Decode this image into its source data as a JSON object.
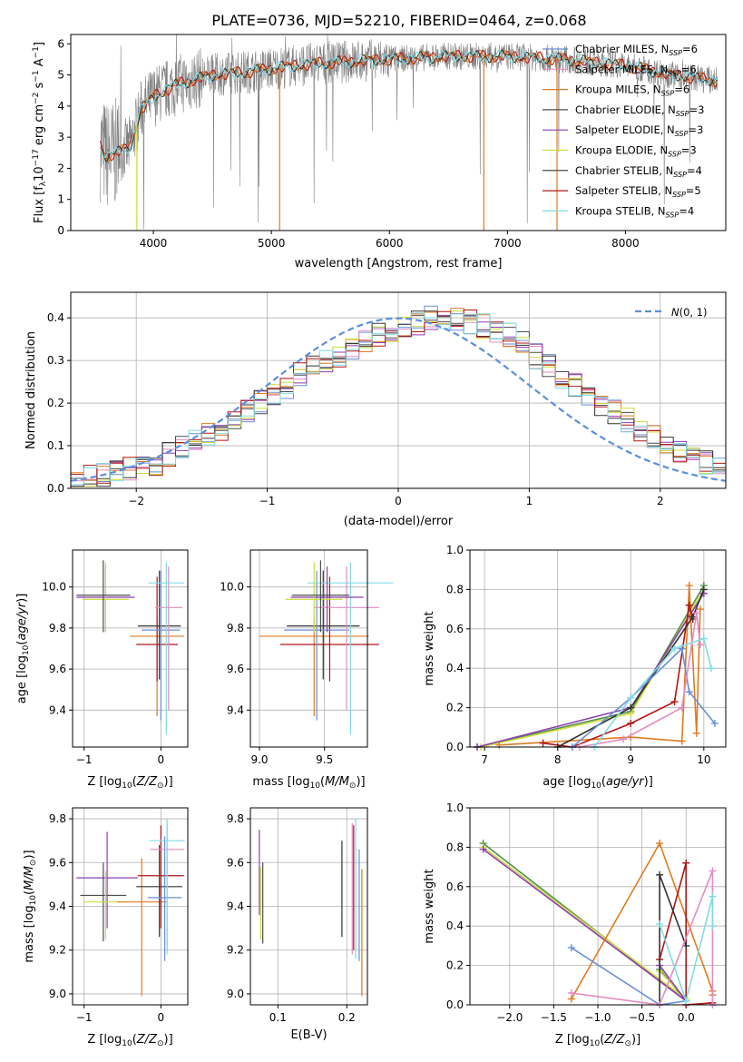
{
  "figure_title": "PLATE=0736, MJD=52210, FIBERID=0464, z=0.068",
  "colors": {
    "Chabrier MILES": "#6a8fd6",
    "Salpeter MILES": "#e58bc0",
    "Kroupa MILES": "#e07b1f",
    "Chabrier ELODIE": "#4d4d4d",
    "Salpeter ELODIE": "#8e3fb0",
    "Kroupa ELODIE": "#cddc39",
    "Chabrier STELIB": "#333333",
    "Salpeter STELIB": "#b01515",
    "Kroupa STELIB": "#80dbe3",
    "data": "#808080",
    "normal": "#5b8ee0",
    "green": "#4f8f4f"
  },
  "legend_spectrum": [
    "Chabrier MILES, N_SSP=6",
    "Salpeter MILES, N_SSP=6",
    "Kroupa MILES, N_SSP=6",
    "Chabrier ELODIE, N_SSP=3",
    "Salpeter ELODIE, N_SSP=3",
    "Kroupa ELODIE, N_SSP=3",
    "Chabrier STELIB, N_SSP=4",
    "Salpeter STELIB, N_SSP=5",
    "Kroupa STELIB, N_SSP=4"
  ],
  "chart_data": [
    {
      "type": "line",
      "panel": "spectrum",
      "title": "PLATE=0736, MJD=52210, FIBERID=0464, z=0.068",
      "xlabel": "wavelength [Angstrom, rest frame]",
      "ylabel": "Flux [f_λ 10^-17 erg cm^-2 s^-1 A^-1]",
      "xlim": [
        3300,
        8850
      ],
      "ylim": [
        0,
        6.3
      ],
      "xticks": [
        4000,
        5000,
        6000,
        7000,
        8000
      ],
      "yticks": [
        0,
        1,
        2,
        3,
        4,
        5,
        6
      ],
      "continuum": {
        "x": [
          3550,
          3600,
          3700,
          3800,
          3900,
          4000,
          4100,
          4200,
          4300,
          4500,
          4800,
          5000,
          5200,
          5500,
          6000,
          6500,
          7000,
          7500,
          8000,
          8400,
          8800
        ],
        "y": [
          2.7,
          2.4,
          2.5,
          2.7,
          3.9,
          4.3,
          4.5,
          4.7,
          4.8,
          5.0,
          5.1,
          5.2,
          5.3,
          5.4,
          5.5,
          5.6,
          5.6,
          5.5,
          5.3,
          5.0,
          4.8
        ]
      }
    },
    {
      "type": "bar",
      "panel": "residuals",
      "xlabel": "(data-model)/error",
      "ylabel": "Normed distribution",
      "xlim": [
        -2.5,
        2.5
      ],
      "ylim": [
        0,
        0.46
      ],
      "xticks": [
        -2,
        -1,
        0,
        1,
        2
      ],
      "yticks": [
        0.0,
        0.1,
        0.2,
        0.3,
        0.4
      ],
      "legend": "N(0,1)",
      "bin_width": 0.1,
      "bin_start": -2.5,
      "hist": [
        0.03,
        0.025,
        0.03,
        0.04,
        0.045,
        0.05,
        0.06,
        0.08,
        0.1,
        0.11,
        0.13,
        0.14,
        0.16,
        0.18,
        0.2,
        0.22,
        0.24,
        0.27,
        0.29,
        0.3,
        0.31,
        0.33,
        0.35,
        0.36,
        0.37,
        0.38,
        0.39,
        0.4,
        0.4,
        0.395,
        0.39,
        0.38,
        0.37,
        0.36,
        0.34,
        0.31,
        0.29,
        0.26,
        0.24,
        0.22,
        0.2,
        0.18,
        0.16,
        0.14,
        0.12,
        0.1,
        0.08,
        0.07,
        0.06,
        0.05
      ]
    },
    {
      "type": "scatter",
      "panel": "age-Z",
      "xlabel": "Z [log10(Z/Z⊙)]",
      "ylabel": "age [log10(age/yr)]",
      "xlim": [
        -1.15,
        0.35
      ],
      "ylim": [
        9.22,
        10.18
      ],
      "xticks": [
        -1,
        0
      ],
      "yticks": [
        9.4,
        9.6,
        9.8,
        10.0
      ],
      "points": [
        {
          "model": "Kroupa MILES",
          "x": -0.05,
          "y": 9.76,
          "xerr": 0.35,
          "yerr": [
            9.37,
            9.85
          ]
        },
        {
          "model": "Salpeter STELIB",
          "x": -0.05,
          "y": 9.72,
          "xerr": 0.27,
          "yerr": [
            9.54,
            10.05
          ]
        },
        {
          "model": "Chabrier STELIB",
          "x": -0.02,
          "y": 9.81,
          "xerr": 0.28,
          "yerr": [
            9.55,
            10.08
          ]
        },
        {
          "model": "Chabrier MILES",
          "x": 0.0,
          "y": 9.79,
          "xerr": 0.25,
          "yerr": [
            9.35,
            10.08
          ]
        },
        {
          "model": "Salpeter MILES",
          "x": 0.1,
          "y": 9.9,
          "xerr": 0.18,
          "yerr": [
            9.4,
            10.1
          ]
        },
        {
          "model": "Kroupa STELIB",
          "x": 0.07,
          "y": 10.02,
          "xerr": 0.23,
          "yerr": [
            9.28,
            10.12
          ]
        },
        {
          "model": "Salpeter ELODIE",
          "x": -0.72,
          "y": 9.95,
          "xerr": 0.38,
          "yerr": [
            9.78,
            10.1
          ]
        },
        {
          "model": "Kroupa ELODIE",
          "x": -0.72,
          "y": 9.94,
          "xerr": 0.3,
          "yerr": [
            9.78,
            10.12
          ]
        },
        {
          "model": "Chabrier ELODIE",
          "x": -0.75,
          "y": 9.96,
          "xerr": 0.35,
          "yerr": [
            9.78,
            10.13
          ]
        }
      ]
    },
    {
      "type": "scatter",
      "panel": "age-mass",
      "xlabel": "mass [log10(M/M⊙)]",
      "xlim": [
        8.93,
        9.83
      ],
      "ylim": [
        9.22,
        10.18
      ],
      "xticks": [
        9.0,
        9.5
      ],
      "yticks": [
        9.4,
        9.6,
        9.8,
        10.0
      ],
      "points": [
        {
          "model": "Kroupa MILES",
          "x": 9.42,
          "y": 9.76,
          "xerr": 0.42,
          "yerr": [
            9.37,
            9.85
          ]
        },
        {
          "model": "Salpeter STELIB",
          "x": 9.54,
          "y": 9.72,
          "xerr": 0.38,
          "yerr": [
            9.54,
            10.05
          ]
        },
        {
          "model": "Chabrier STELIB",
          "x": 9.49,
          "y": 9.81,
          "xerr": 0.28,
          "yerr": [
            9.55,
            10.08
          ]
        },
        {
          "model": "Chabrier MILES",
          "x": 9.44,
          "y": 9.79,
          "xerr": 0.25,
          "yerr": [
            9.35,
            10.08
          ]
        },
        {
          "model": "Salpeter MILES",
          "x": 9.67,
          "y": 9.9,
          "xerr": 0.25,
          "yerr": [
            9.4,
            10.1
          ]
        },
        {
          "model": "Kroupa STELIB",
          "x": 9.7,
          "y": 10.02,
          "xerr": 0.33,
          "yerr": [
            9.28,
            10.12
          ]
        },
        {
          "model": "Salpeter ELODIE",
          "x": 9.52,
          "y": 9.95,
          "xerr": 0.28,
          "yerr": [
            9.78,
            10.1
          ]
        },
        {
          "model": "Kroupa ELODIE",
          "x": 9.42,
          "y": 9.94,
          "xerr": 0.22,
          "yerr": [
            9.78,
            10.12
          ]
        },
        {
          "model": "Chabrier ELODIE",
          "x": 9.47,
          "y": 9.96,
          "xerr": 0.22,
          "yerr": [
            9.78,
            10.13
          ]
        }
      ]
    },
    {
      "type": "line",
      "panel": "weight-age",
      "xlabel": "age [log10(age/yr)]",
      "ylabel": "mass weight",
      "xlim": [
        6.8,
        10.3
      ],
      "ylim": [
        0,
        1.0
      ],
      "xticks": [
        7,
        8,
        9,
        10
      ],
      "yticks": [
        0.0,
        0.2,
        0.4,
        0.6,
        0.8,
        1.0
      ],
      "series": [
        {
          "model": "Chabrier ELODIE",
          "x": [
            6.9,
            9.0,
            10.0
          ],
          "y": [
            0.0,
            0.18,
            0.82
          ]
        },
        {
          "model": "Kroupa ELODIE",
          "x": [
            6.95,
            9.0,
            10.0
          ],
          "y": [
            0.0,
            0.17,
            0.8
          ]
        },
        {
          "model": "Salpeter ELODIE",
          "x": [
            6.9,
            9.0,
            10.0
          ],
          "y": [
            0.0,
            0.2,
            0.78
          ]
        },
        {
          "model": "Kroupa MILES",
          "x": [
            7.2,
            9.0,
            9.7,
            9.8,
            9.9,
            9.95
          ],
          "y": [
            0.01,
            0.05,
            0.03,
            0.82,
            0.07,
            0.7
          ]
        },
        {
          "model": "Salpeter STELIB",
          "x": [
            7.8,
            8.2,
            9.0,
            9.6,
            9.8,
            9.85
          ],
          "y": [
            0.02,
            0.0,
            0.12,
            0.23,
            0.72,
            0.65
          ]
        },
        {
          "model": "Chabrier STELIB",
          "x": [
            8.0,
            9.0,
            9.85,
            10.0
          ],
          "y": [
            0.0,
            0.2,
            0.66,
            0.8
          ]
        },
        {
          "model": "Chabrier MILES",
          "x": [
            8.2,
            9.0,
            9.7,
            9.8,
            10.15
          ],
          "y": [
            0.0,
            0.25,
            0.5,
            0.28,
            0.12
          ]
        },
        {
          "model": "Salpeter MILES",
          "x": [
            8.3,
            8.9,
            9.7,
            9.9,
            9.95
          ],
          "y": [
            0.0,
            0.04,
            0.2,
            0.68,
            0.52
          ]
        },
        {
          "model": "Kroupa STELIB",
          "x": [
            8.5,
            9.0,
            9.6,
            10.0,
            10.1
          ],
          "y": [
            0.0,
            0.25,
            0.5,
            0.55,
            0.4
          ]
        }
      ]
    },
    {
      "type": "scatter",
      "panel": "mass-Z",
      "xlabel": "Z [log10(Z/Z⊙)]",
      "ylabel": "mass [log10(M/M⊙)]",
      "xlim": [
        -1.15,
        0.35
      ],
      "ylim": [
        8.95,
        9.85
      ],
      "xticks": [
        -1,
        0
      ],
      "yticks": [
        9.0,
        9.2,
        9.4,
        9.6,
        9.8
      ],
      "points": [
        {
          "model": "Salpeter ELODIE",
          "x": -0.7,
          "y": 9.53,
          "xerr": 0.4,
          "yerr": [
            9.3,
            9.74
          ]
        },
        {
          "model": "Chabrier ELODIE",
          "x": -0.75,
          "y": 9.45,
          "xerr": 0.3,
          "yerr": [
            9.24,
            9.6
          ]
        },
        {
          "model": "Kroupa ELODIE",
          "x": -0.72,
          "y": 9.42,
          "xerr": 0.28,
          "yerr": [
            9.25,
            9.56
          ]
        },
        {
          "model": "Kroupa MILES",
          "x": -0.25,
          "y": 9.42,
          "xerr": 0.32,
          "yerr": [
            8.99,
            9.62
          ]
        },
        {
          "model": "Chabrier STELIB",
          "x": -0.02,
          "y": 9.49,
          "xerr": 0.3,
          "yerr": [
            9.26,
            9.68
          ]
        },
        {
          "model": "Salpeter STELIB",
          "x": 0.0,
          "y": 9.54,
          "xerr": 0.3,
          "yerr": [
            9.3,
            9.77
          ]
        },
        {
          "model": "Chabrier MILES",
          "x": 0.05,
          "y": 9.44,
          "xerr": 0.22,
          "yerr": [
            9.15,
            9.72
          ]
        },
        {
          "model": "Salpeter MILES",
          "x": 0.08,
          "y": 9.66,
          "xerr": 0.22,
          "yerr": [
            9.2,
            9.78
          ]
        },
        {
          "model": "Kroupa STELIB",
          "x": 0.08,
          "y": 9.7,
          "xerr": 0.23,
          "yerr": [
            9.18,
            9.8
          ]
        }
      ]
    },
    {
      "type": "scatter",
      "panel": "mass-EBV",
      "xlabel": "E(B-V)",
      "xlim": [
        0.06,
        0.23
      ],
      "ylim": [
        8.95,
        9.85
      ],
      "xticks": [
        0.1,
        0.2
      ],
      "yticks": [
        9.0,
        9.2,
        9.4,
        9.6,
        9.8
      ],
      "points": [
        {
          "model": "Salpeter ELODIE",
          "x": 0.073,
          "y": 9.55,
          "yerr": [
            9.36,
            9.75
          ]
        },
        {
          "model": "Kroupa ELODIE",
          "x": 0.075,
          "y": 9.45,
          "yerr": [
            9.25,
            9.58
          ]
        },
        {
          "model": "Chabrier ELODIE",
          "x": 0.078,
          "y": 9.42,
          "yerr": [
            9.23,
            9.6
          ]
        },
        {
          "model": "Chabrier STELIB",
          "x": 0.193,
          "y": 9.5,
          "yerr": [
            9.26,
            9.7
          ]
        },
        {
          "model": "Salpeter MILES",
          "x": 0.208,
          "y": 9.5,
          "yerr": [
            9.18,
            9.78
          ]
        },
        {
          "model": "Salpeter STELIB",
          "x": 0.21,
          "y": 9.55,
          "yerr": [
            9.2,
            9.77
          ]
        },
        {
          "model": "Kroupa STELIB",
          "x": 0.213,
          "y": 9.5,
          "yerr": [
            9.16,
            9.8
          ]
        },
        {
          "model": "Chabrier MILES",
          "x": 0.218,
          "y": 9.4,
          "yerr": [
            9.15,
            9.66
          ]
        },
        {
          "model": "Kroupa MILES",
          "x": 0.222,
          "y": 9.3,
          "yerr": [
            8.99,
            9.57
          ]
        }
      ]
    },
    {
      "type": "line",
      "panel": "weight-Z",
      "xlabel": "Z [log10(Z/Z⊙)]",
      "ylabel": "mass weight",
      "xlim": [
        -2.45,
        0.45
      ],
      "ylim": [
        0,
        1.0
      ],
      "xticks": [
        -2.0,
        -1.5,
        -1.0,
        -0.5,
        0.0
      ],
      "yticks": [
        0.0,
        0.2,
        0.4,
        0.6,
        0.8,
        1.0
      ],
      "series": [
        {
          "model": "Chabrier ELODIE",
          "x": [
            -2.3,
            0.0,
            -0.3
          ],
          "y": [
            0.82,
            0.02,
            0.18
          ]
        },
        {
          "model": "Kroupa ELODIE",
          "x": [
            -2.3,
            0.0,
            -0.3
          ],
          "y": [
            0.8,
            0.03,
            0.17
          ]
        },
        {
          "model": "Salpeter ELODIE",
          "x": [
            -2.3,
            0.0,
            -0.3
          ],
          "y": [
            0.79,
            0.02,
            0.2
          ]
        },
        {
          "model": "Kroupa MILES",
          "x": [
            -1.3,
            -0.3,
            0.3,
            0.3
          ],
          "y": [
            0.03,
            0.82,
            0.07,
            0.05
          ]
        },
        {
          "model": "Salpeter STELIB",
          "x": [
            -0.3,
            0.0,
            0.0,
            0.3
          ],
          "y": [
            0.23,
            0.72,
            0.0,
            0.01
          ]
        },
        {
          "model": "Chabrier STELIB",
          "x": [
            -0.3,
            -0.3,
            0.0
          ],
          "y": [
            0.0,
            0.66,
            0.3
          ]
        },
        {
          "model": "Chabrier MILES",
          "x": [
            -1.3,
            -0.3,
            0.0,
            -0.3
          ],
          "y": [
            0.29,
            0.0,
            0.02,
            0.0
          ]
        },
        {
          "model": "Salpeter MILES",
          "x": [
            -1.3,
            -0.3,
            0.3,
            0.3
          ],
          "y": [
            0.06,
            0.0,
            0.68,
            0.0
          ]
        },
        {
          "model": "Kroupa STELIB",
          "x": [
            -0.3,
            0.0,
            0.3,
            0.3
          ],
          "y": [
            0.41,
            0.02,
            0.55,
            0.4
          ]
        }
      ]
    }
  ]
}
